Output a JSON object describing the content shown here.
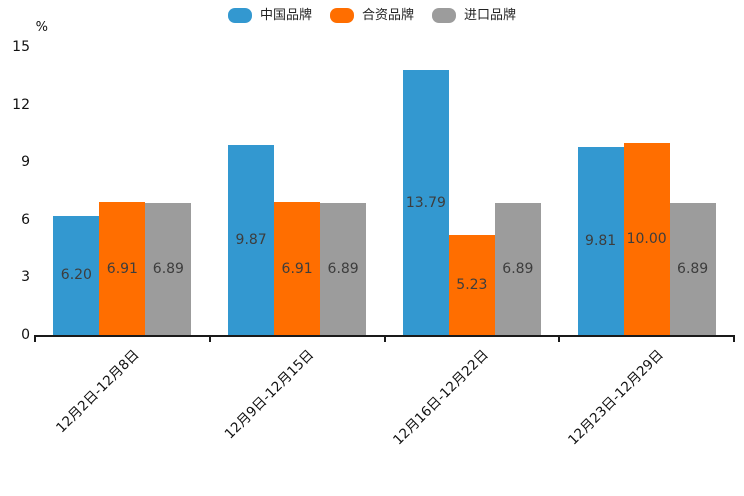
{
  "chart_data": {
    "type": "bar",
    "title": "",
    "ylabel": "%",
    "xlabel": "",
    "categories": [
      "12月2日-12月8日",
      "12月9日-12月15日",
      "12月16日-12月22日",
      "12月23日-12月29日"
    ],
    "series": [
      {
        "name": "中国品牌",
        "color": "#3398D0",
        "values": [
          6.2,
          9.87,
          13.79,
          9.81
        ]
      },
      {
        "name": "合资品牌",
        "color": "#FF6E00",
        "values": [
          6.91,
          6.91,
          5.23,
          10.0
        ]
      },
      {
        "name": "进口品牌",
        "color": "#9C9C9C",
        "values": [
          6.89,
          6.89,
          6.89,
          6.89
        ]
      }
    ],
    "value_labels": [
      [
        "6.20",
        "9.87",
        "13.79",
        "9.81"
      ],
      [
        "6.91",
        "6.91",
        "5.23",
        "10.00"
      ],
      [
        "6.89",
        "6.89",
        "6.89",
        "6.89"
      ]
    ],
    "yticks": [
      "0",
      "3",
      "6",
      "9",
      "12",
      "15"
    ],
    "ylim": [
      0,
      15
    ],
    "grid": false,
    "legend_position": "top"
  }
}
